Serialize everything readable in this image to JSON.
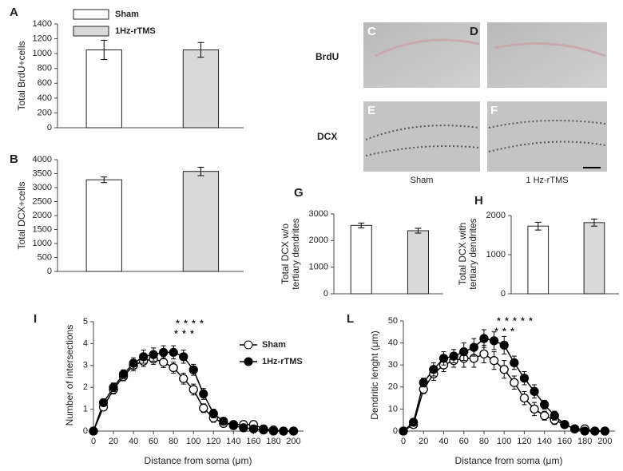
{
  "micrographs": {
    "rows": [
      "BrdU",
      "DCX"
    ],
    "panels": [
      "C",
      "D",
      "E",
      "F"
    ],
    "captions": [
      "Sham",
      "1 Hz-rTMS"
    ]
  },
  "chart_data": [
    {
      "type": "bar",
      "panel": "A",
      "ylabel": [
        "Total BrdU+cells"
      ],
      "ylim": [
        0,
        1400
      ],
      "yticks": [
        0,
        200,
        400,
        600,
        800,
        1000,
        1200,
        1400
      ],
      "legend": true,
      "series": [
        {
          "name": "Sham",
          "color": "#ffffff",
          "values": [
            1050
          ],
          "errors": [
            130
          ]
        },
        {
          "name": "1Hz-rTMS",
          "color": "#d9d9d9",
          "values": [
            1050
          ],
          "errors": [
            100
          ]
        }
      ]
    },
    {
      "type": "bar",
      "panel": "B",
      "ylabel": [
        "Total DCX+cells"
      ],
      "ylim": [
        0,
        4000
      ],
      "yticks": [
        0,
        500,
        1000,
        1500,
        2000,
        2500,
        3000,
        3500,
        4000
      ],
      "series": [
        {
          "color": "#ffffff",
          "values": [
            3280
          ],
          "errors": [
            100
          ]
        },
        {
          "color": "#d9d9d9",
          "values": [
            3580
          ],
          "errors": [
            150
          ]
        }
      ]
    },
    {
      "type": "bar",
      "panel": "G",
      "ylabel": [
        "Total DCX w/o",
        "tertiary dendrites"
      ],
      "ylim": [
        0,
        3000
      ],
      "yticks": [
        0,
        1000,
        2000,
        3000
      ],
      "series": [
        {
          "color": "#ffffff",
          "values": [
            2570
          ],
          "errors": [
            90
          ]
        },
        {
          "color": "#d9d9d9",
          "values": [
            2370
          ],
          "errors": [
            90
          ]
        }
      ]
    },
    {
      "type": "bar",
      "panel": "H",
      "ylabel": [
        "Total DCX with",
        "tertiary dendrites"
      ],
      "ylim": [
        0,
        2000
      ],
      "yticks": [
        0,
        1000,
        2000
      ],
      "series": [
        {
          "color": "#ffffff",
          "values": [
            1730
          ],
          "errors": [
            100
          ]
        },
        {
          "color": "#d9d9d9",
          "values": [
            1820
          ],
          "errors": [
            90
          ]
        }
      ]
    },
    {
      "type": "line",
      "panel": "I",
      "ylabel": [
        "Number of intersections"
      ],
      "xlabel": "Distance from soma (μm)",
      "legend": true,
      "x": [
        0,
        10,
        20,
        30,
        40,
        50,
        60,
        70,
        80,
        90,
        100,
        110,
        120,
        130,
        140,
        150,
        160,
        170,
        180,
        190,
        200
      ],
      "xlim": [
        0,
        210
      ],
      "xticks": [
        0,
        20,
        40,
        60,
        80,
        100,
        120,
        140,
        160,
        180,
        200
      ],
      "ylim": [
        0,
        5
      ],
      "yticks": [
        0,
        1,
        2,
        3,
        4,
        5
      ],
      "annotations": [
        "* * * *",
        "* * *"
      ],
      "series": [
        {
          "name": "Sham",
          "color": "#ffffff",
          "values": [
            0,
            1.1,
            1.9,
            2.5,
            3.0,
            3.2,
            3.3,
            3.15,
            2.9,
            2.4,
            1.9,
            1.05,
            0.6,
            0.35,
            0.3,
            0.3,
            0.3,
            0.1,
            0.05,
            0,
            0
          ],
          "errors": [
            0,
            0.15,
            0.2,
            0.2,
            0.25,
            0.25,
            0.25,
            0.25,
            0.25,
            0.25,
            0.25,
            0.2,
            0.2,
            0.15,
            0.15,
            0.15,
            0.1,
            0.05,
            0.05,
            0,
            0
          ]
        },
        {
          "name": "1Hz-rTMS",
          "color": "#000000",
          "values": [
            0,
            1.3,
            2.0,
            2.6,
            3.1,
            3.4,
            3.5,
            3.6,
            3.6,
            3.4,
            2.8,
            1.7,
            0.8,
            0.45,
            0.25,
            0.15,
            0.1,
            0.05,
            0,
            0,
            0
          ],
          "errors": [
            0,
            0.15,
            0.2,
            0.2,
            0.25,
            0.3,
            0.3,
            0.3,
            0.3,
            0.3,
            0.25,
            0.25,
            0.2,
            0.15,
            0.1,
            0.1,
            0.05,
            0.05,
            0,
            0,
            0
          ]
        }
      ]
    },
    {
      "type": "line",
      "panel": "L",
      "ylabel": [
        "Dendritic lenght (μm)"
      ],
      "xlabel": "Distance from soma (μm)",
      "x": [
        0,
        10,
        20,
        30,
        40,
        50,
        60,
        70,
        80,
        90,
        100,
        110,
        120,
        130,
        140,
        150,
        160,
        170,
        180,
        190,
        200
      ],
      "xlim": [
        0,
        210
      ],
      "xticks": [
        0,
        20,
        40,
        60,
        80,
        100,
        120,
        140,
        160,
        180,
        200
      ],
      "ylim": [
        0,
        50
      ],
      "yticks": [
        0,
        10,
        20,
        30,
        40,
        50
      ],
      "annotations": [
        "* * * * *",
        "* * *"
      ],
      "series": [
        {
          "color": "#ffffff",
          "values": [
            0,
            3,
            19,
            26,
            30,
            32,
            33,
            33,
            35,
            32,
            28,
            22,
            15,
            10,
            7,
            5,
            3,
            1,
            1,
            0,
            0
          ],
          "errors": [
            0,
            1,
            2,
            3,
            3,
            3,
            4,
            4,
            4,
            4,
            4,
            3,
            3,
            3,
            2,
            2,
            1,
            1,
            1,
            0,
            0
          ]
        },
        {
          "color": "#000000",
          "values": [
            0,
            4,
            22,
            28,
            33,
            34,
            36,
            38,
            42,
            41,
            39,
            31,
            24,
            18,
            12,
            7,
            3,
            1,
            0,
            0,
            0
          ],
          "errors": [
            0,
            1,
            2,
            3,
            3,
            3,
            4,
            4,
            4,
            4,
            4,
            3,
            3,
            3,
            2,
            2,
            1,
            1,
            0,
            0,
            0
          ]
        }
      ]
    }
  ]
}
